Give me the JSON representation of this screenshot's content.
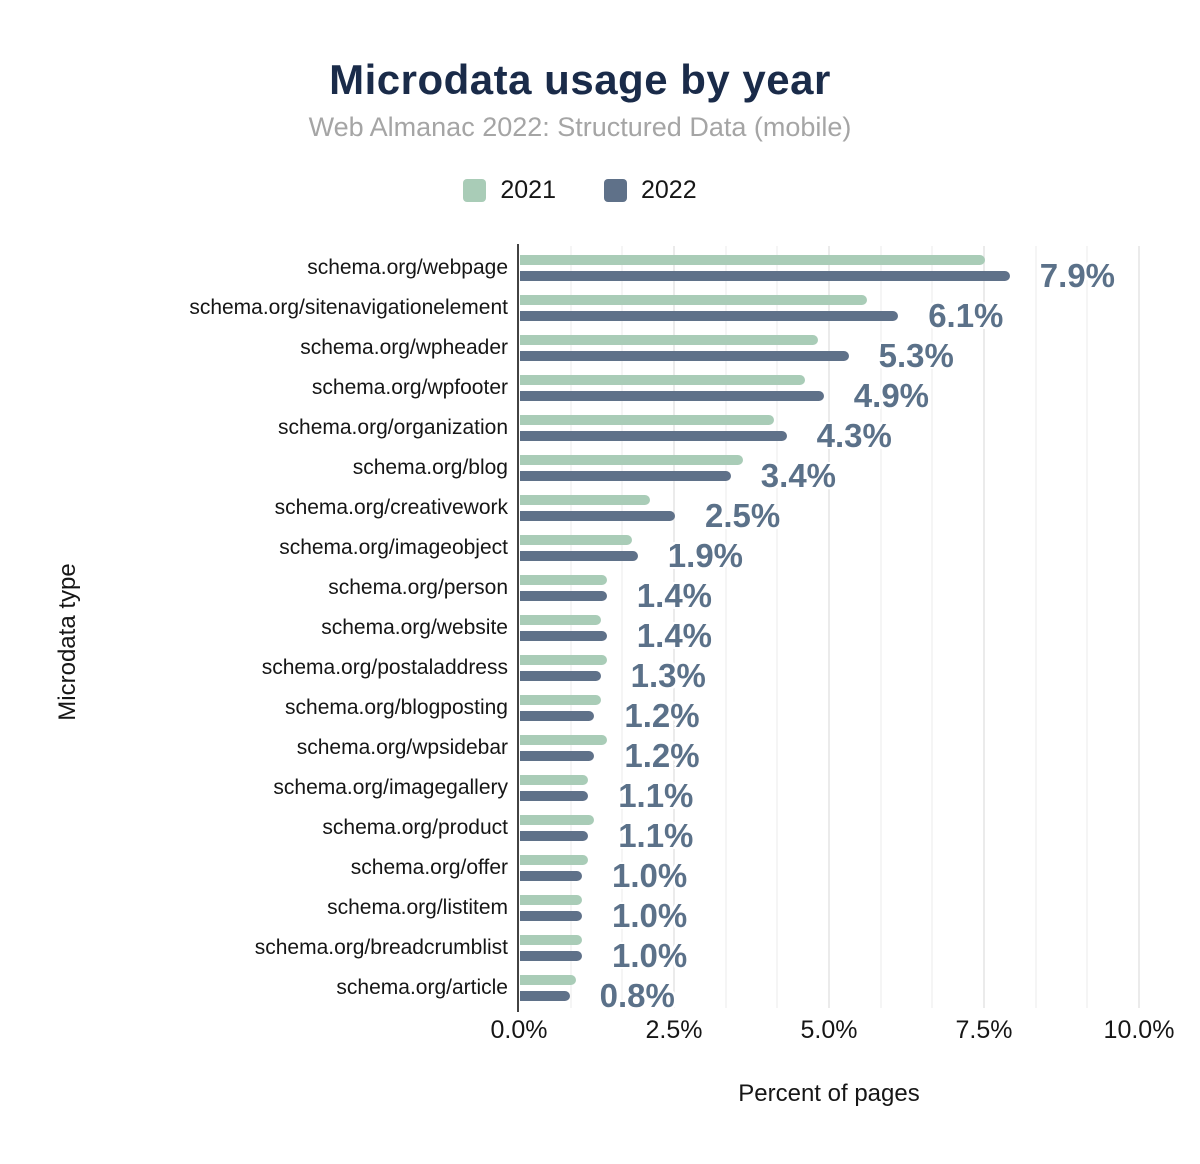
{
  "header": {
    "title": "Microdata usage by year",
    "subtitle": "Web Almanac 2022: Structured Data (mobile)"
  },
  "legend": [
    {
      "label": "2021",
      "color": "#a9ccb7"
    },
    {
      "label": "2022",
      "color": "#5f7189"
    }
  ],
  "axes": {
    "x_label": "Percent of pages",
    "y_label": "Microdata type",
    "x_ticks": [
      "0.0%",
      "2.5%",
      "5.0%",
      "7.5%",
      "10.0%"
    ]
  },
  "colors": {
    "title": "#1a2b49",
    "subtitle": "#a5a5a5",
    "text": "#161616",
    "annotation": "#5b7189",
    "series_2021": "#a9ccb7",
    "series_2022": "#5f7189",
    "grid_minor": "#f5f5f5",
    "grid_major": "#ebebeb",
    "axis_line": "#424242"
  },
  "chart_data": {
    "type": "bar",
    "orientation": "horizontal",
    "title": "Microdata usage by year",
    "subtitle": "Web Almanac 2022: Structured Data (mobile)",
    "xlabel": "Percent of pages",
    "ylabel": "Microdata type",
    "xlim": [
      0,
      10.33
    ],
    "x_tick_values": [
      0,
      2.5,
      5,
      7.5,
      10
    ],
    "grid": "vertical; major every 2.5%, two minor lines per major interval",
    "legend_position": "top-center",
    "categories": [
      "schema.org/webpage",
      "schema.org/sitenavigationelement",
      "schema.org/wpheader",
      "schema.org/wpfooter",
      "schema.org/organization",
      "schema.org/blog",
      "schema.org/creativework",
      "schema.org/imageobject",
      "schema.org/person",
      "schema.org/website",
      "schema.org/postaladdress",
      "schema.org/blogposting",
      "schema.org/wpsidebar",
      "schema.org/imagegallery",
      "schema.org/product",
      "schema.org/offer",
      "schema.org/listitem",
      "schema.org/breadcrumblist",
      "schema.org/article"
    ],
    "series": [
      {
        "name": "2021",
        "color": "#a9ccb7",
        "values": [
          7.5,
          5.6,
          4.8,
          4.6,
          4.1,
          3.6,
          2.1,
          1.8,
          1.4,
          1.3,
          1.4,
          1.3,
          1.4,
          1.1,
          1.2,
          1.1,
          1.0,
          1.0,
          0.9
        ]
      },
      {
        "name": "2022",
        "color": "#5f7189",
        "values": [
          7.9,
          6.1,
          5.3,
          4.9,
          4.3,
          3.4,
          2.5,
          1.9,
          1.4,
          1.4,
          1.3,
          1.2,
          1.2,
          1.1,
          1.1,
          1.0,
          1.0,
          1.0,
          0.8
        ]
      }
    ],
    "annotations": [
      "7.9%",
      "6.1%",
      "5.3%",
      "4.9%",
      "4.3%",
      "3.4%",
      "2.5%",
      "1.9%",
      "1.4%",
      "1.4%",
      "1.3%",
      "1.2%",
      "1.2%",
      "1.1%",
      "1.1%",
      "1.0%",
      "1.0%",
      "1.0%",
      "0.8%"
    ]
  }
}
